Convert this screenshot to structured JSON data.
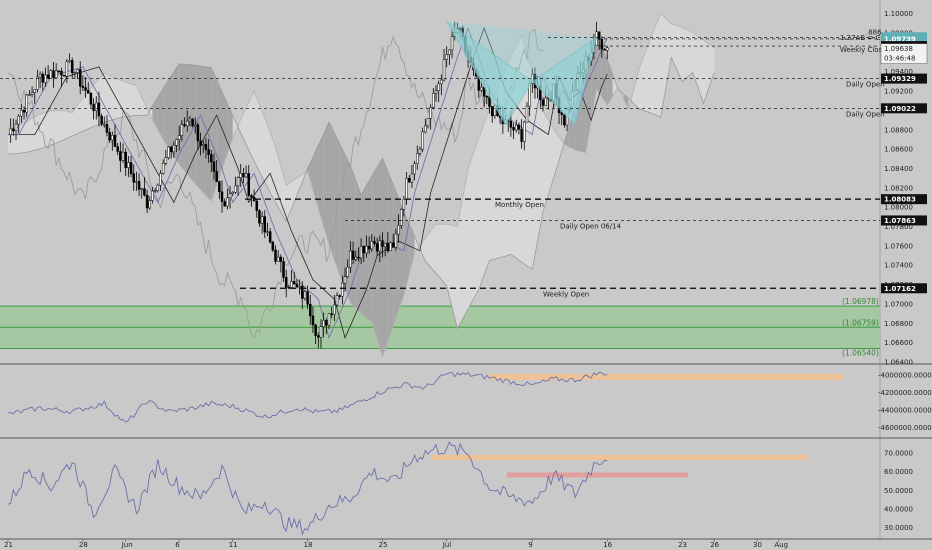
{
  "colors": {
    "background": "#c9c9c9",
    "grid": "#bdbdbd",
    "candle_body": "#000000",
    "cloud": "#d8d8d8",
    "cloud_dark": "#a6a6a6",
    "lagging_span": "#9c9c9c",
    "kijun": "#262626",
    "tenkan": "#7a6fa8",
    "zone_fill": "#9fc79a",
    "zone_line": "#3f9c3f",
    "pattern_fill": "#8fd3d6",
    "dashed_level": "#000000",
    "indicator_line": "#6b72a8",
    "orange_band": "#f4c08e",
    "red_band": "#e59a9a"
  },
  "chart_data": [
    {
      "type": "line",
      "name": "price-panel",
      "ylim": [
        1.064,
        1.101
      ],
      "y_ticks": [
        "1.10000",
        "1.09800",
        "1.09600",
        "1.09400",
        "1.09200",
        "1.09000",
        "1.08800",
        "1.08600",
        "1.08400",
        "1.08200",
        "1.08000",
        "1.07800",
        "1.07600",
        "1.07400",
        "1.07200",
        "1.07000",
        "1.06800",
        "1.06600",
        "1.06400"
      ],
      "x_ticks": [
        {
          "label": "21",
          "day": 0
        },
        {
          "label": "28",
          "day": 7
        },
        {
          "label": "Jun",
          "day": 11
        },
        {
          "label": "6",
          "day": 16
        },
        {
          "label": "11",
          "day": 21
        },
        {
          "label": "18",
          "day": 28
        },
        {
          "label": "25",
          "day": 35
        },
        {
          "label": "Jul",
          "day": 41
        },
        {
          "label": "9",
          "day": 49
        },
        {
          "label": "16",
          "day": 56
        },
        {
          "label": "23",
          "day": 63
        },
        {
          "label": "26",
          "day": 66
        },
        {
          "label": "30",
          "day": 70
        },
        {
          "label": "Aug",
          "day": 72
        }
      ],
      "close_series": {
        "anchors_day": [
          0,
          3,
          6,
          8,
          10,
          12,
          13,
          15,
          17,
          19,
          20,
          22,
          24,
          26,
          28,
          29,
          31,
          32,
          34,
          36,
          37,
          39,
          41,
          42,
          43,
          44,
          46,
          48,
          49,
          50,
          51,
          52,
          53,
          54,
          55,
          56
        ],
        "anchors_price": [
          1.0875,
          1.0935,
          1.0945,
          1.0905,
          1.0865,
          1.0825,
          1.0805,
          1.0855,
          1.0895,
          1.084,
          1.0805,
          1.0835,
          1.0775,
          1.0725,
          1.0705,
          1.0665,
          1.0715,
          1.075,
          1.0765,
          1.0755,
          1.0815,
          1.0885,
          1.0955,
          1.0985,
          1.0955,
          1.092,
          1.089,
          1.0875,
          1.0935,
          1.091,
          1.092,
          1.089,
          1.0925,
          1.095,
          1.0975,
          1.0965
        ]
      },
      "levels": [
        {
          "label": "Monthly Open",
          "value": 1.08083,
          "tag": "1.08083"
        },
        {
          "label": "Daily Open 06/14",
          "value": 1.07863,
          "tag": "1.07863"
        },
        {
          "label": "Weekly Open",
          "value": 1.07162,
          "tag": "1.07162"
        },
        {
          "label": "Daily Open",
          "value": 1.09329,
          "tag": "1.09329"
        },
        {
          "label": "Daily Open",
          "value": 1.09022,
          "tag": "1.09022"
        },
        {
          "label": ".886",
          "value": 1.09756,
          "tag": "1.09756"
        },
        {
          "label": "1.27AB = CD",
          "value": 1.09739,
          "tag": "1.09739"
        },
        {
          "label": "Weekly Close",
          "value": 1.09665,
          "tag": "1.09665"
        }
      ],
      "timer_text": "1.09638",
      "countdown_text": "03:46:48",
      "support_zone": {
        "top": 1.06978,
        "mid": 1.06759,
        "bottom": 1.0654,
        "labels": [
          "(1.06978)",
          "(1.06759)",
          "(1.06540)"
        ]
      },
      "harmonic_pattern": {
        "points_day": [
          41,
          46.5,
          49,
          53,
          55
        ],
        "points_price": [
          1.0992,
          1.0885,
          1.093,
          1.0885,
          1.0975
        ]
      }
    },
    {
      "type": "line",
      "name": "cumulative-indicator-panel",
      "ylim": [
        -4700000,
        -3900000
      ],
      "y_ticks": [
        "-4000000.0000",
        "-4200000.0000",
        "-4400000.0000",
        "-4600000.0000"
      ],
      "anchors_day": [
        0,
        3,
        6,
        9,
        11,
        13,
        15,
        17,
        19,
        21,
        24,
        27,
        29,
        31,
        33,
        35,
        37,
        39,
        41,
        43,
        45,
        47,
        49,
        51,
        53,
        55,
        56
      ],
      "anchors_value": [
        -4450000,
        -4380000,
        -4420000,
        -4330000,
        -4560000,
        -4300000,
        -4420000,
        -4390000,
        -4330000,
        -4360000,
        -4480000,
        -4380000,
        -4430000,
        -4410000,
        -4300000,
        -4190000,
        -4110000,
        -4150000,
        -3990000,
        -4000000,
        -4030000,
        -4080000,
        -4120000,
        -4050000,
        -4060000,
        -3990000,
        -3980000
      ]
    },
    {
      "type": "line",
      "name": "oscillator-panel",
      "ylim": [
        25,
        77
      ],
      "y_ticks": [
        "70.0000",
        "60.0000",
        "50.0000",
        "40.0000",
        "30.0000"
      ],
      "anchors_day": [
        0,
        2,
        4,
        6,
        8,
        10,
        12,
        14,
        16,
        18,
        20,
        22,
        24,
        26,
        28,
        30,
        32,
        34,
        36,
        38,
        40,
        41,
        43,
        45,
        47,
        49,
        51,
        53,
        55,
        56
      ],
      "anchors_value": [
        42,
        62,
        52,
        66,
        38,
        60,
        40,
        64,
        52,
        46,
        62,
        38,
        44,
        32,
        30,
        42,
        46,
        60,
        54,
        68,
        72,
        73,
        70,
        52,
        46,
        44,
        58,
        48,
        66,
        68
      ]
    }
  ]
}
